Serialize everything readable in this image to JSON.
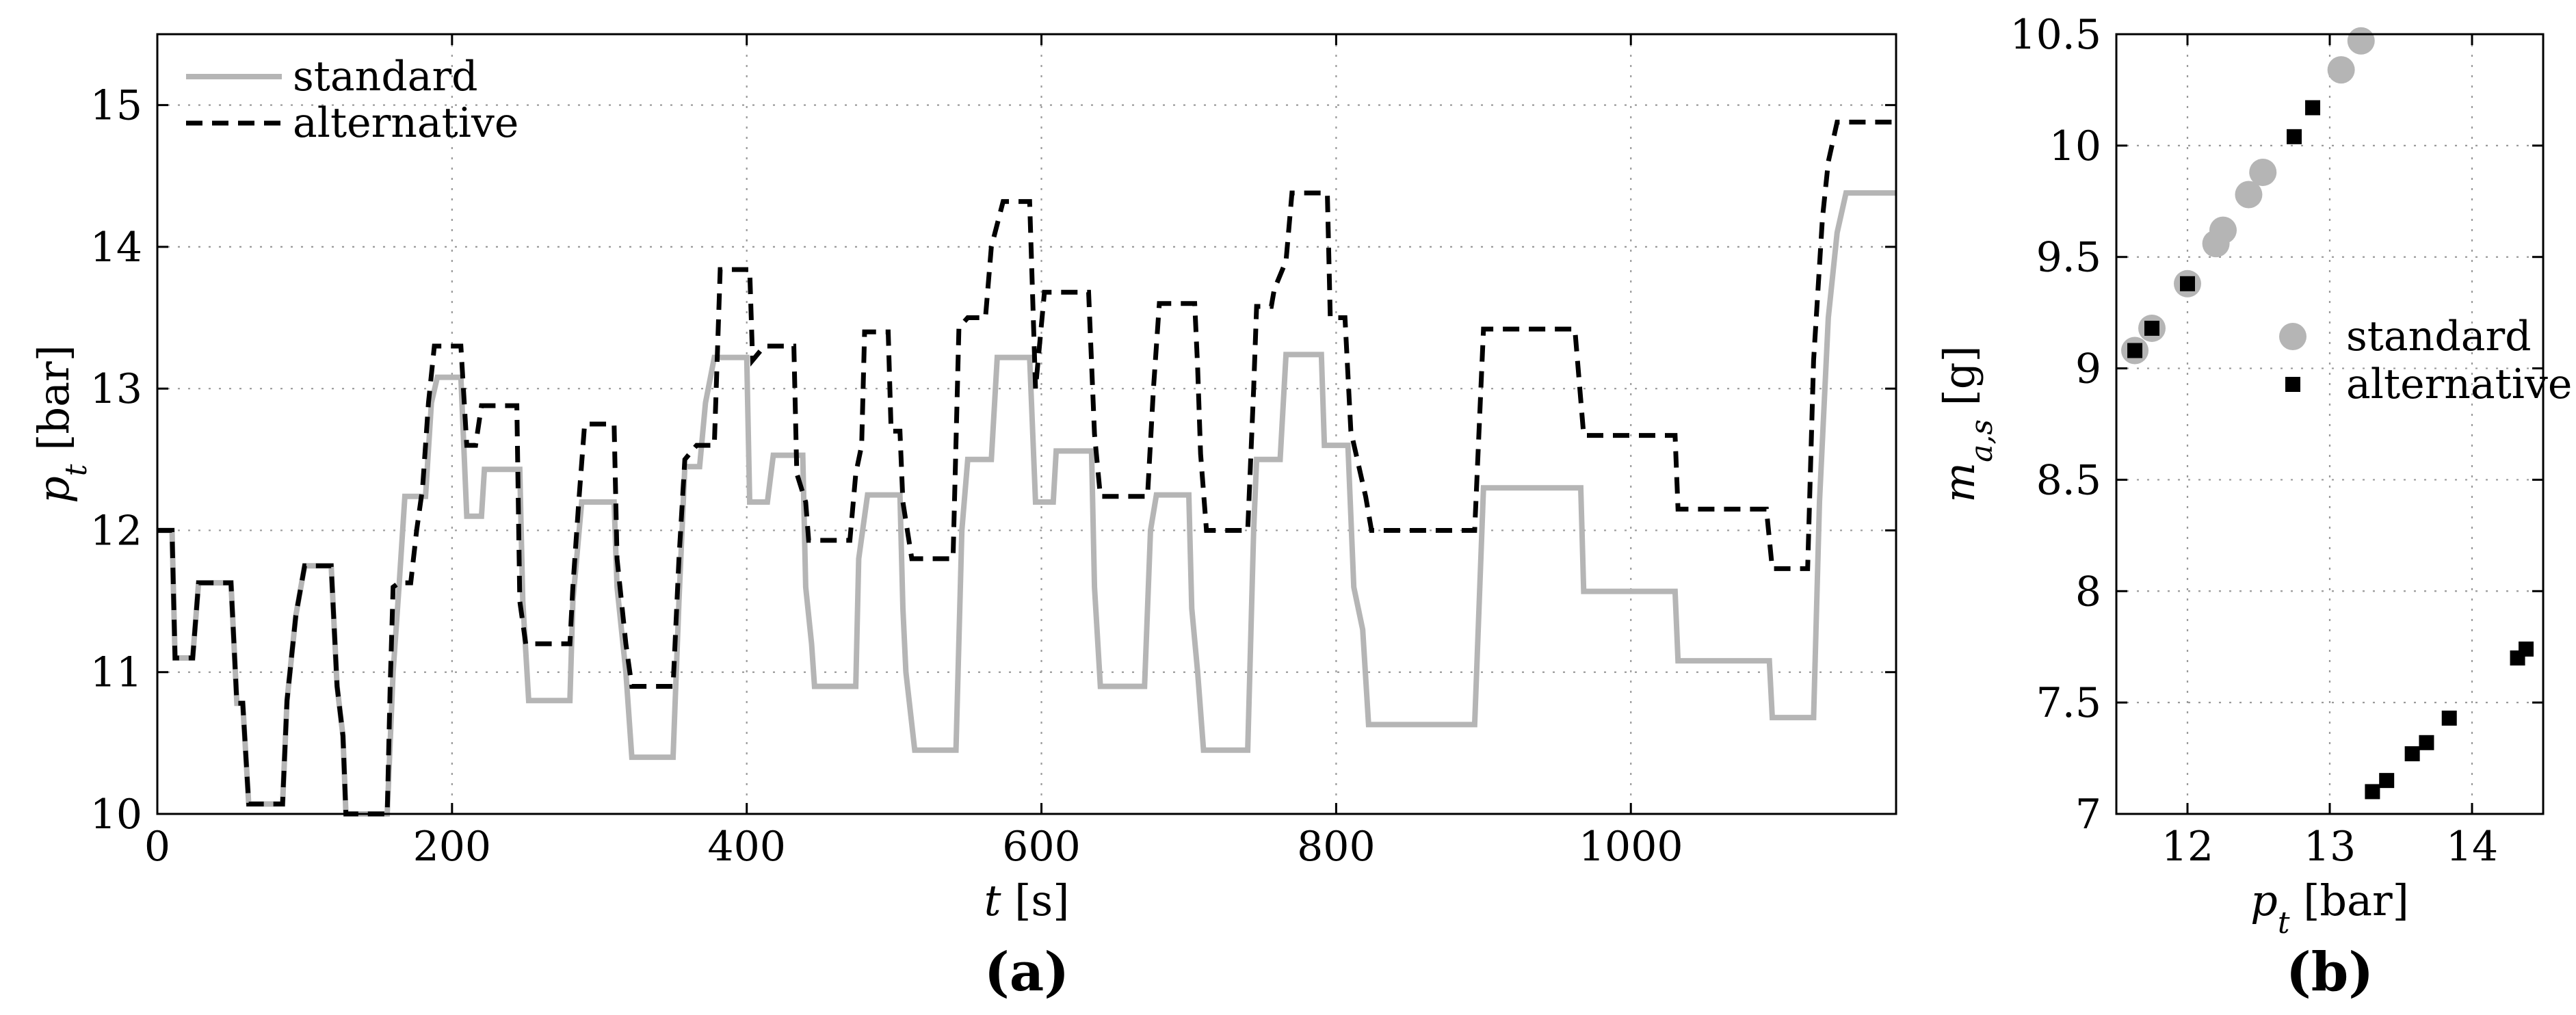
{
  "chart_data": [
    {
      "type": "line",
      "panel_label": "(a)",
      "xlabel_symbol": "t",
      "xlabel_unit": "[s]",
      "ylabel_symbol": "p",
      "ylabel_sub": "t",
      "ylabel_unit": "[bar]",
      "xlim": [
        0,
        1180
      ],
      "ylim": [
        10,
        15.5
      ],
      "xticks": [
        0,
        200,
        400,
        600,
        800,
        1000
      ],
      "yticks": [
        10,
        11,
        12,
        13,
        14,
        15
      ],
      "grid": true,
      "legend_position": "top-left",
      "series": [
        {
          "name": "standard",
          "color": "#b5b5b5",
          "style": "solid",
          "points": [
            [
              0,
              12.0
            ],
            [
              10,
              12.0
            ],
            [
              12,
              11.1
            ],
            [
              24,
              11.1
            ],
            [
              28,
              11.63
            ],
            [
              50,
              11.63
            ],
            [
              54,
              10.78
            ],
            [
              58,
              10.78
            ],
            [
              62,
              10.07
            ],
            [
              85,
              10.07
            ],
            [
              88,
              10.8
            ],
            [
              94,
              11.4
            ],
            [
              100,
              11.75
            ],
            [
              118,
              11.75
            ],
            [
              122,
              10.9
            ],
            [
              126,
              10.55
            ],
            [
              128,
              10.0
            ],
            [
              156,
              10.0
            ],
            [
              160,
              11.0
            ],
            [
              164,
              11.6
            ],
            [
              168,
              12.24
            ],
            [
              182,
              12.24
            ],
            [
              186,
              12.9
            ],
            [
              190,
              13.08
            ],
            [
              206,
              13.08
            ],
            [
              210,
              12.1
            ],
            [
              220,
              12.1
            ],
            [
              222,
              12.43
            ],
            [
              246,
              12.43
            ],
            [
              248,
              11.5
            ],
            [
              252,
              10.8
            ],
            [
              280,
              10.8
            ],
            [
              282,
              11.5
            ],
            [
              288,
              12.2
            ],
            [
              310,
              12.2
            ],
            [
              312,
              11.6
            ],
            [
              318,
              11.0
            ],
            [
              322,
              10.4
            ],
            [
              350,
              10.4
            ],
            [
              354,
              11.5
            ],
            [
              358,
              12.45
            ],
            [
              368,
              12.45
            ],
            [
              372,
              12.9
            ],
            [
              378,
              13.22
            ],
            [
              400,
              13.22
            ],
            [
              402,
              12.2
            ],
            [
              414,
              12.2
            ],
            [
              418,
              12.53
            ],
            [
              438,
              12.53
            ],
            [
              440,
              11.6
            ],
            [
              444,
              11.2
            ],
            [
              446,
              10.9
            ],
            [
              474,
              10.9
            ],
            [
              476,
              11.8
            ],
            [
              482,
              12.25
            ],
            [
              504,
              12.25
            ],
            [
              506,
              11.45
            ],
            [
              508,
              11.0
            ],
            [
              514,
              10.45
            ],
            [
              542,
              10.45
            ],
            [
              546,
              12.0
            ],
            [
              550,
              12.5
            ],
            [
              566,
              12.5
            ],
            [
              570,
              13.22
            ],
            [
              592,
              13.22
            ],
            [
              596,
              12.2
            ],
            [
              608,
              12.2
            ],
            [
              610,
              12.56
            ],
            [
              634,
              12.56
            ],
            [
              636,
              11.6
            ],
            [
              640,
              10.9
            ],
            [
              670,
              10.9
            ],
            [
              674,
              12.0
            ],
            [
              678,
              12.25
            ],
            [
              700,
              12.25
            ],
            [
              702,
              11.45
            ],
            [
              706,
              11.0
            ],
            [
              710,
              10.45
            ],
            [
              740,
              10.45
            ],
            [
              744,
              12.0
            ],
            [
              746,
              12.5
            ],
            [
              762,
              12.5
            ],
            [
              766,
              13.24
            ],
            [
              790,
              13.24
            ],
            [
              792,
              12.6
            ],
            [
              808,
              12.6
            ],
            [
              812,
              11.6
            ],
            [
              818,
              11.3
            ],
            [
              822,
              10.63
            ],
            [
              894,
              10.63
            ],
            [
              900,
              12.3
            ],
            [
              966,
              12.3
            ],
            [
              968,
              11.57
            ],
            [
              1030,
              11.57
            ],
            [
              1032,
              11.08
            ],
            [
              1094,
              11.08
            ],
            [
              1096,
              10.68
            ],
            [
              1124,
              10.68
            ],
            [
              1128,
              12.2
            ],
            [
              1134,
              13.5
            ],
            [
              1140,
              14.1
            ],
            [
              1146,
              14.38
            ],
            [
              1180,
              14.38
            ]
          ]
        },
        {
          "name": "alternative",
          "color": "#000000",
          "style": "dashed",
          "points": [
            [
              0,
              12.0
            ],
            [
              10,
              12.0
            ],
            [
              12,
              11.1
            ],
            [
              24,
              11.1
            ],
            [
              28,
              11.63
            ],
            [
              50,
              11.63
            ],
            [
              54,
              10.78
            ],
            [
              58,
              10.78
            ],
            [
              62,
              10.07
            ],
            [
              85,
              10.07
            ],
            [
              88,
              10.8
            ],
            [
              94,
              11.4
            ],
            [
              100,
              11.75
            ],
            [
              118,
              11.75
            ],
            [
              122,
              10.9
            ],
            [
              126,
              10.55
            ],
            [
              128,
              10.0
            ],
            [
              156,
              10.0
            ],
            [
              158,
              10.9
            ],
            [
              160,
              11.6
            ],
            [
              164,
              11.63
            ],
            [
              172,
              11.63
            ],
            [
              176,
              12.0
            ],
            [
              180,
              12.3
            ],
            [
              184,
              12.9
            ],
            [
              188,
              13.3
            ],
            [
              206,
              13.3
            ],
            [
              210,
              12.6
            ],
            [
              216,
              12.6
            ],
            [
              220,
              12.88
            ],
            [
              244,
              12.88
            ],
            [
              246,
              11.5
            ],
            [
              250,
              11.2
            ],
            [
              280,
              11.2
            ],
            [
              282,
              11.6
            ],
            [
              286,
              12.2
            ],
            [
              290,
              12.75
            ],
            [
              310,
              12.75
            ],
            [
              312,
              11.8
            ],
            [
              318,
              11.2
            ],
            [
              322,
              10.9
            ],
            [
              350,
              10.9
            ],
            [
              354,
              11.8
            ],
            [
              358,
              12.5
            ],
            [
              366,
              12.6
            ],
            [
              378,
              12.6
            ],
            [
              382,
              13.84
            ],
            [
              402,
              13.84
            ],
            [
              404,
              13.2
            ],
            [
              412,
              13.3
            ],
            [
              432,
              13.3
            ],
            [
              434,
              12.4
            ],
            [
              440,
              12.2
            ],
            [
              442,
              11.93
            ],
            [
              470,
              11.93
            ],
            [
              474,
              12.4
            ],
            [
              478,
              12.6
            ],
            [
              480,
              13.4
            ],
            [
              496,
              13.4
            ],
            [
              498,
              12.7
            ],
            [
              504,
              12.7
            ],
            [
              506,
              12.2
            ],
            [
              512,
              11.8
            ],
            [
              540,
              11.8
            ],
            [
              544,
              13.43
            ],
            [
              550,
              13.5
            ],
            [
              562,
              13.5
            ],
            [
              566,
              14.0
            ],
            [
              574,
              14.32
            ],
            [
              592,
              14.32
            ],
            [
              596,
              13.0
            ],
            [
              602,
              13.68
            ],
            [
              632,
              13.68
            ],
            [
              636,
              12.68
            ],
            [
              640,
              12.24
            ],
            [
              672,
              12.24
            ],
            [
              676,
              13.0
            ],
            [
              680,
              13.6
            ],
            [
              704,
              13.6
            ],
            [
              706,
              13.15
            ],
            [
              708,
              12.54
            ],
            [
              712,
              12.0
            ],
            [
              740,
              12.0
            ],
            [
              744,
              13.0
            ],
            [
              746,
              13.58
            ],
            [
              756,
              13.58
            ],
            [
              758,
              13.7
            ],
            [
              766,
              13.9
            ],
            [
              770,
              14.38
            ],
            [
              794,
              14.38
            ],
            [
              796,
              13.5
            ],
            [
              806,
              13.5
            ],
            [
              810,
              12.7
            ],
            [
              820,
              12.24
            ],
            [
              824,
              12.0
            ],
            [
              894,
              12.0
            ],
            [
              900,
              13.42
            ],
            [
              962,
              13.42
            ],
            [
              968,
              12.67
            ],
            [
              1030,
              12.67
            ],
            [
              1032,
              12.15
            ],
            [
              1092,
              12.15
            ],
            [
              1096,
              11.73
            ],
            [
              1120,
              11.73
            ],
            [
              1124,
              13.2
            ],
            [
              1130,
              14.2
            ],
            [
              1134,
              14.6
            ],
            [
              1140,
              14.88
            ],
            [
              1180,
              14.88
            ]
          ]
        }
      ]
    },
    {
      "type": "scatter",
      "panel_label": "(b)",
      "xlabel_symbol": "p",
      "xlabel_sub": "t",
      "xlabel_unit": "[bar]",
      "ylabel_symbol": "m",
      "ylabel_sub": "a,s",
      "ylabel_unit": "[g]",
      "xlim": [
        11.5,
        14.5
      ],
      "ylim": [
        7,
        10.5
      ],
      "xticks": [
        12,
        13,
        14
      ],
      "yticks": [
        7,
        7.5,
        8,
        8.5,
        9,
        9.5,
        10,
        10.5
      ],
      "ytick_labels": [
        "7",
        "7.5",
        "8",
        "8.5",
        "9",
        "9.5",
        "10",
        "10.5"
      ],
      "grid": true,
      "legend_position": "center-right",
      "series": [
        {
          "name": "standard",
          "color": "#b5b5b5",
          "marker": "circle",
          "points": [
            [
              11.63,
              9.08
            ],
            [
              11.75,
              9.18
            ],
            [
              12.0,
              9.38
            ],
            [
              12.2,
              9.56
            ],
            [
              12.25,
              9.62
            ],
            [
              12.43,
              9.78
            ],
            [
              12.53,
              9.88
            ],
            [
              13.08,
              10.34
            ],
            [
              13.22,
              10.47
            ]
          ]
        },
        {
          "name": "alternative",
          "color": "#000000",
          "marker": "square",
          "points": [
            [
              11.63,
              9.08
            ],
            [
              11.75,
              9.18
            ],
            [
              12.0,
              9.38
            ],
            [
              12.75,
              10.04
            ],
            [
              12.88,
              10.17
            ],
            [
              13.3,
              7.1
            ],
            [
              13.4,
              7.15
            ],
            [
              13.58,
              7.27
            ],
            [
              13.68,
              7.32
            ],
            [
              13.84,
              7.43
            ],
            [
              14.32,
              7.7
            ],
            [
              14.38,
              7.74
            ]
          ]
        }
      ]
    }
  ]
}
